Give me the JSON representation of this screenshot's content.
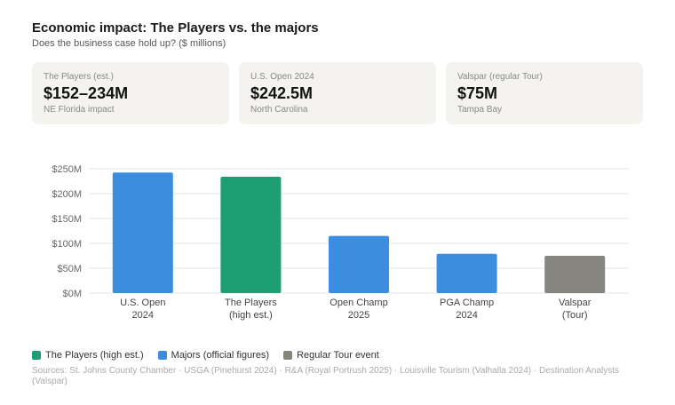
{
  "header": {
    "title": "Economic impact: The Players vs. the majors",
    "subtitle": "Does the business case hold up? ($ millions)"
  },
  "cards": [
    {
      "label": "The Players (est.)",
      "value": "$152–234M",
      "sub": "NE Florida impact"
    },
    {
      "label": "U.S. Open 2024",
      "value": "$242.5M",
      "sub": "North Carolina"
    },
    {
      "label": "Valspar (regular Tour)",
      "value": "$75M",
      "sub": "Tampa Bay"
    }
  ],
  "colors": {
    "players": "#1e9e73",
    "majors": "#3b8de0",
    "regular": "#86867e",
    "grid": "#e6e6e6",
    "axis_text": "#666666"
  },
  "chart_data": {
    "type": "bar",
    "title": "",
    "xlabel": "",
    "ylabel": "",
    "ylim": [
      0,
      250
    ],
    "yticks": [
      0,
      50,
      100,
      150,
      200,
      250
    ],
    "ytick_labels": [
      "$0M",
      "$50M",
      "$100M",
      "$150M",
      "$200M",
      "$250M"
    ],
    "categories": [
      {
        "line1": "U.S. Open",
        "line2": "2024"
      },
      {
        "line1": "The Players",
        "line2": "(high est.)"
      },
      {
        "line1": "Open Champ",
        "line2": "2025"
      },
      {
        "line1": "PGA Champ",
        "line2": "2024"
      },
      {
        "line1": "Valspar",
        "line2": "(Tour)"
      }
    ],
    "values": [
      242.5,
      234,
      115,
      79,
      75
    ],
    "groups": [
      "majors",
      "players",
      "majors",
      "majors",
      "regular"
    ]
  },
  "legend": [
    {
      "label": "The Players (high est.)",
      "group": "players"
    },
    {
      "label": "Majors (official figures)",
      "group": "majors"
    },
    {
      "label": "Regular Tour event",
      "group": "regular"
    }
  ],
  "source": "Sources: St. Johns County Chamber · USGA (Pinehurst 2024) · R&A (Royal Portrush 2025) · Louisville Tourism (Valhalla 2024) · Destination Analysts (Valspar)"
}
